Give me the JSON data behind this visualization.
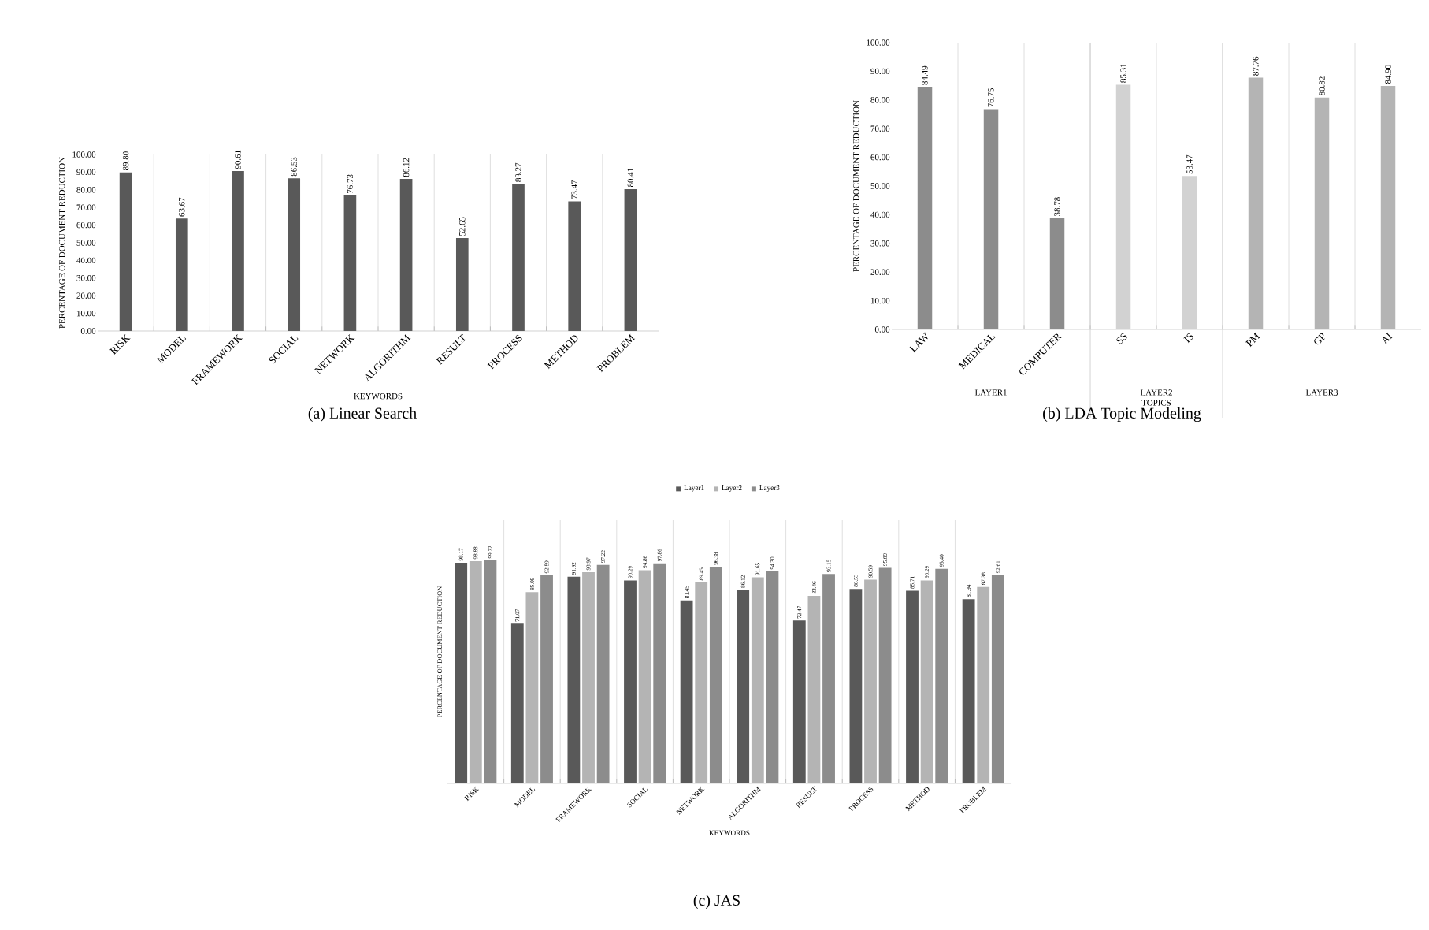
{
  "chart_data": [
    {
      "type": "bar",
      "title": "(a) Linear Search",
      "xlabel": "KEYWORDS",
      "ylabel": "PERCENTAGE OF DOCUMENT REDUCTION",
      "categories": [
        "RISK",
        "MODEL",
        "FRAMEWORK",
        "SOCIAL",
        "NETWORK",
        "ALGORITHM",
        "RESULT",
        "PROCESS",
        "METHOD",
        "PROBLEM"
      ],
      "values": [
        89.8,
        63.67,
        90.61,
        86.53,
        76.73,
        86.12,
        52.65,
        83.27,
        73.47,
        80.41
      ],
      "value_labels": [
        "89.80",
        "63.67",
        "90.61",
        "86.53",
        "76.73",
        "86.12",
        "52.65",
        "83.27",
        "73.47",
        "80.41"
      ],
      "color": "#595959",
      "ylim": [
        0,
        100
      ],
      "yticks": [
        {
          "value": 0,
          "label": "0.00"
        },
        {
          "value": 10,
          "label": "10.00"
        },
        {
          "value": 20,
          "label": "20.00"
        },
        {
          "value": 30,
          "label": "30.00"
        },
        {
          "value": 40,
          "label": "40.00"
        },
        {
          "value": 50,
          "label": "50.00"
        },
        {
          "value": 60,
          "label": "60.00"
        },
        {
          "value": 70,
          "label": "70.00"
        },
        {
          "value": 80,
          "label": "80.00"
        },
        {
          "value": 90,
          "label": "90.00"
        },
        {
          "value": 100,
          "label": "100.00"
        }
      ],
      "grid": "x"
    },
    {
      "type": "bar",
      "title": "(b) LDA Topic Modeling",
      "xlabel": "TOPICS",
      "ylabel": "PERCENTAGE OF DOCUMENT REDUCTION",
      "categories": [
        "LAW",
        "MEDICAL",
        "COMPUTER",
        "SS",
        "IS",
        "PM",
        "GP",
        "AI"
      ],
      "values": [
        84.49,
        76.75,
        38.78,
        85.31,
        53.47,
        87.76,
        80.82,
        84.9
      ],
      "value_labels": [
        "84.49",
        "76.75",
        "38.78",
        "85.31",
        "53.47",
        "87.76",
        "80.82",
        "84.90"
      ],
      "colors": [
        "#8c8c8c",
        "#8c8c8c",
        "#8c8c8c",
        "#d2d2d2",
        "#d2d2d2",
        "#b4b4b4",
        "#b4b4b4",
        "#b4b4b4"
      ],
      "annotations": [
        "LAYER1",
        "LAYER2",
        "LAYER3"
      ],
      "ylim": [
        0,
        100
      ],
      "yticks": [
        {
          "value": 0,
          "label": "0.00"
        },
        {
          "value": 10,
          "label": "10.00"
        },
        {
          "value": 20,
          "label": "20.00"
        },
        {
          "value": 30,
          "label": "30.00"
        },
        {
          "value": 40,
          "label": "40.00"
        },
        {
          "value": 50,
          "label": "50.00"
        },
        {
          "value": 60,
          "label": "60.00"
        },
        {
          "value": 70,
          "label": "70.00"
        },
        {
          "value": 80,
          "label": "80.00"
        },
        {
          "value": 90,
          "label": "90.00"
        },
        {
          "value": 100,
          "label": "100.00"
        }
      ],
      "grid": "x"
    },
    {
      "type": "bar",
      "title": "(c) JAS",
      "xlabel": "KEYWORDS",
      "ylabel": "PERCENTAGE OF DOCUMENT REDUCTION",
      "categories": [
        "RISK",
        "MODEL",
        "FRAMEWORK",
        "SOCIAL",
        "NETWORK",
        "ALGORITHM",
        "RESULT",
        "PROCESS",
        "METHOD",
        "PROBLEM"
      ],
      "series": [
        {
          "name": "Layer1",
          "color": "#595959",
          "values": [
            98.17,
            71.07,
            91.92,
            90.29,
            81.45,
            86.12,
            72.47,
            86.53,
            85.71,
            81.94
          ],
          "value_labels": [
            "98.17",
            "71.07",
            "91.92",
            "90.29",
            "81.45",
            "86.12",
            "72.47",
            "86.53",
            "85.71",
            "81.94"
          ]
        },
        {
          "name": "Layer2",
          "color": "#b4b4b4",
          "values": [
            98.88,
            85.09,
            93.97,
            94.86,
            89.45,
            91.65,
            83.46,
            90.59,
            90.29,
            87.38
          ],
          "value_labels": [
            "98.88",
            "85.09",
            "93.97",
            "94.86",
            "89.45",
            "91.65",
            "83.46",
            "90.59",
            "90.29",
            "87.38"
          ]
        },
        {
          "name": "Layer3",
          "color": "#8c8c8c",
          "values": [
            99.22,
            92.59,
            97.22,
            97.86,
            96.38,
            94.3,
            93.15,
            95.89,
            95.4,
            92.61
          ],
          "value_labels": [
            "99.22",
            "92.59",
            "97.22",
            "97.86",
            "96.38",
            "94.30",
            "93.15",
            "95.89",
            "95.40",
            "92.61"
          ]
        }
      ],
      "legend": "top",
      "tick_labels": "x",
      "grid": "x"
    }
  ]
}
